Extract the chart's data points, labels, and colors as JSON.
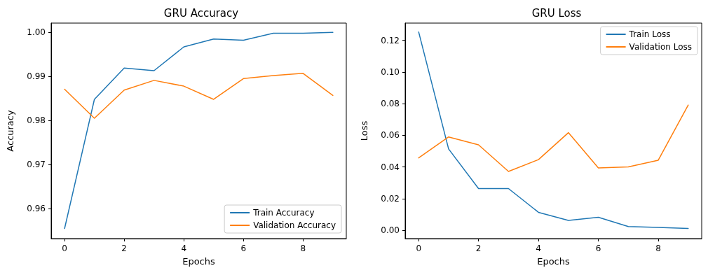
{
  "chart_data": [
    {
      "type": "line",
      "title": "GRU Accuracy",
      "xlabel": "Epochs",
      "ylabel": "Accuracy",
      "x": [
        0,
        1,
        2,
        3,
        4,
        5,
        6,
        7,
        8,
        9
      ],
      "series": [
        {
          "name": "Train Accuracy",
          "color": "#1f77b4",
          "values": [
            0.9555,
            0.9848,
            0.9919,
            0.9913,
            0.9967,
            0.9985,
            0.9982,
            0.9998,
            0.9998,
            1.0
          ]
        },
        {
          "name": "Validation Accuracy",
          "color": "#ff7f0e",
          "values": [
            0.9871,
            0.9805,
            0.9869,
            0.9891,
            0.9878,
            0.9848,
            0.9895,
            0.9902,
            0.9907,
            0.9857
          ]
        }
      ],
      "xlim": [
        -0.45,
        9.45
      ],
      "xticks": [
        0,
        2,
        4,
        6,
        8
      ],
      "ylim": [
        0.9532,
        1.0021
      ],
      "yticks": [
        {
          "value": 0.96,
          "label": "0.96"
        },
        {
          "value": 0.97,
          "label": "0.97"
        },
        {
          "value": 0.98,
          "label": "0.98"
        },
        {
          "value": 0.99,
          "label": "0.99"
        },
        {
          "value": 1.0,
          "label": "1.00"
        }
      ],
      "legend": "bottom right",
      "grid": false,
      "marker": "none",
      "line_style": "solid"
    },
    {
      "type": "line",
      "title": "GRU Loss",
      "xlabel": "Epochs",
      "ylabel": "Loss",
      "x": [
        0,
        1,
        2,
        3,
        4,
        5,
        6,
        7,
        8,
        9
      ],
      "series": [
        {
          "name": "Train Loss",
          "color": "#1f77b4",
          "values": [
            0.1253,
            0.0514,
            0.0264,
            0.0264,
            0.0114,
            0.0063,
            0.0083,
            0.0024,
            0.0019,
            0.0012
          ]
        },
        {
          "name": "Validation Loss",
          "color": "#ff7f0e",
          "values": [
            0.0458,
            0.059,
            0.054,
            0.0372,
            0.0447,
            0.0617,
            0.0394,
            0.0401,
            0.0443,
            0.0791
          ]
        }
      ],
      "xlim": [
        -0.45,
        9.45
      ],
      "xticks": [
        0,
        2,
        4,
        6,
        8
      ],
      "ylim": [
        -0.0052,
        0.1309
      ],
      "yticks": [
        {
          "value": 0,
          "label": "0.00"
        },
        {
          "value": 0.02,
          "label": "0.02"
        },
        {
          "value": 0.04,
          "label": "0.04"
        },
        {
          "value": 0.06,
          "label": "0.06"
        },
        {
          "value": 0.08,
          "label": "0.08"
        },
        {
          "value": 0.1,
          "label": "0.10"
        },
        {
          "value": 0.12,
          "label": "0.12"
        }
      ],
      "legend": "top right",
      "grid": false,
      "marker": "none",
      "line_style": "solid"
    }
  ]
}
